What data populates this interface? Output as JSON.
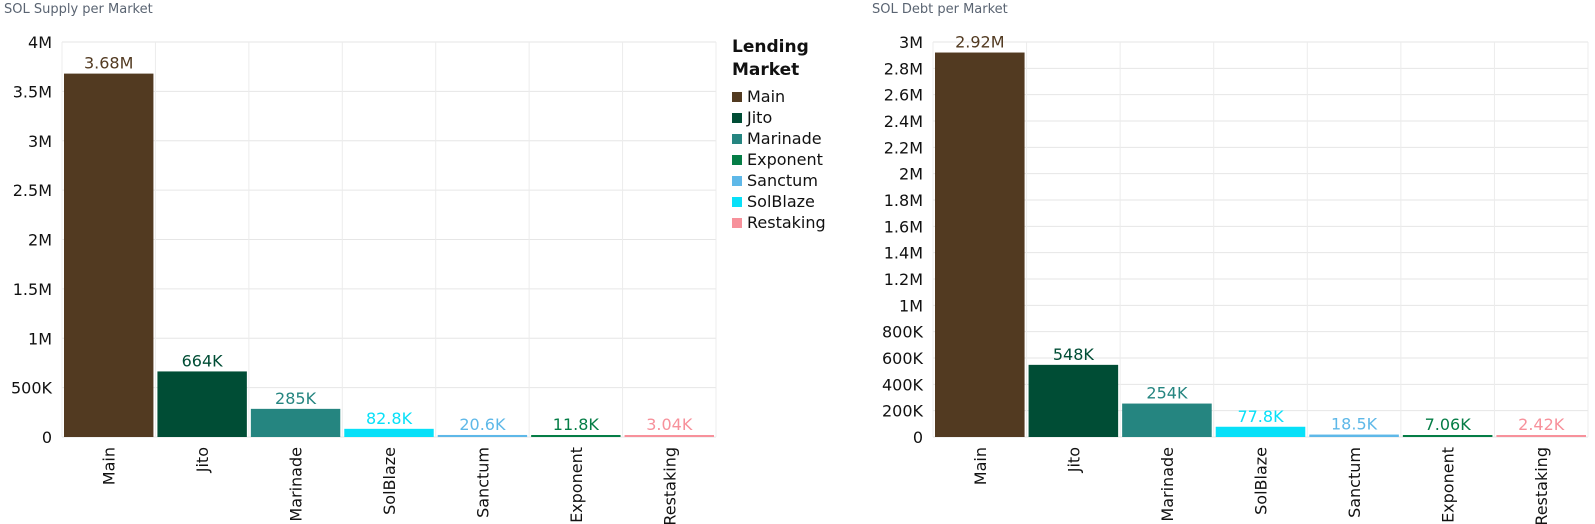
{
  "titles": {
    "left": "SOL Supply per Market",
    "right": "SOL Debt per Market"
  },
  "legend": {
    "title": "Lending Market",
    "items": [
      {
        "label": "Main",
        "color": "#523A21"
      },
      {
        "label": "Jito",
        "color": "#004D35"
      },
      {
        "label": "Marinade",
        "color": "#258580"
      },
      {
        "label": "Exponent",
        "color": "#057D46"
      },
      {
        "label": "Sanctum",
        "color": "#5EB8E8"
      },
      {
        "label": "SolBlaze",
        "color": "#08E0F8"
      },
      {
        "label": "Restaking",
        "color": "#F7919B"
      }
    ]
  },
  "chart_data": [
    {
      "type": "bar",
      "title": "SOL Supply per Market",
      "categories": [
        "Main",
        "Jito",
        "Marinade",
        "SolBlaze",
        "Sanctum",
        "Exponent",
        "Restaking"
      ],
      "values": [
        3680000,
        664000,
        285000,
        82800,
        20600,
        11800,
        3040
      ],
      "data_labels": [
        "3.68M",
        "664K",
        "285K",
        "82.8K",
        "20.6K",
        "11.8K",
        "3.04K"
      ],
      "colors": [
        "#523A21",
        "#004D35",
        "#258580",
        "#08E0F8",
        "#5EB8E8",
        "#057D46",
        "#F7919B"
      ],
      "ylim": [
        0,
        4000000
      ],
      "yticks": [
        0,
        500000,
        1000000,
        1500000,
        2000000,
        2500000,
        3000000,
        3500000,
        4000000
      ],
      "ytick_labels": [
        "0",
        "500K",
        "1M",
        "1.5M",
        "2M",
        "2.5M",
        "3M",
        "3.5M",
        "4M"
      ],
      "grid": true
    },
    {
      "type": "bar",
      "title": "SOL Debt per Market",
      "categories": [
        "Main",
        "Jito",
        "Marinade",
        "SolBlaze",
        "Sanctum",
        "Exponent",
        "Restaking"
      ],
      "values": [
        2920000,
        548000,
        254000,
        77800,
        18500,
        7060,
        2420
      ],
      "data_labels": [
        "2.92M",
        "548K",
        "254K",
        "77.8K",
        "18.5K",
        "7.06K",
        "2.42K"
      ],
      "colors": [
        "#523A21",
        "#004D35",
        "#258580",
        "#08E0F8",
        "#5EB8E8",
        "#057D46",
        "#F7919B"
      ],
      "ylim": [
        0,
        3000000
      ],
      "yticks": [
        0,
        200000,
        400000,
        600000,
        800000,
        1000000,
        1200000,
        1400000,
        1600000,
        1800000,
        2000000,
        2200000,
        2400000,
        2600000,
        2800000,
        3000000
      ],
      "ytick_labels": [
        "0",
        "200K",
        "400K",
        "600K",
        "800K",
        "1M",
        "1.2M",
        "1.4M",
        "1.6M",
        "1.8M",
        "2M",
        "2.2M",
        "2.4M",
        "2.6M",
        "2.8M",
        "3M"
      ],
      "grid": true
    }
  ]
}
